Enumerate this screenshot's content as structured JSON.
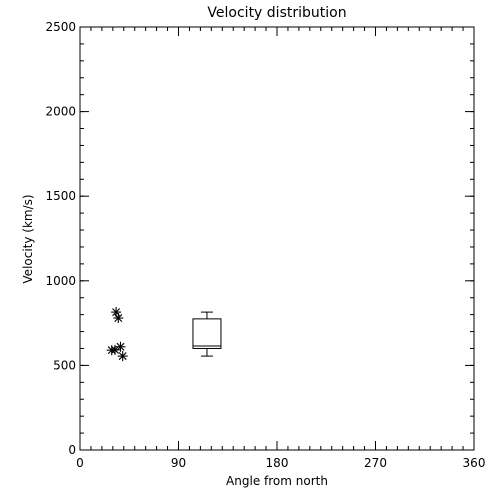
{
  "chart_data": {
    "type": "scatter",
    "title": "Velocity distribution",
    "xlabel": "Angle from north",
    "ylabel": "Velocity (km/s)",
    "xlim": [
      0,
      360
    ],
    "ylim": [
      0,
      2500
    ],
    "x_ticks": [
      0,
      90,
      180,
      270,
      360
    ],
    "y_ticks": [
      0,
      500,
      1000,
      1500,
      2000,
      2500
    ],
    "x_minor_step": 10,
    "y_minor_step": 100,
    "grid": false,
    "points": [
      {
        "x": 33,
        "y": 815
      },
      {
        "x": 35,
        "y": 780
      },
      {
        "x": 29,
        "y": 590
      },
      {
        "x": 32,
        "y": 592
      },
      {
        "x": 37,
        "y": 610
      },
      {
        "x": 39,
        "y": 555
      }
    ],
    "point_marker": "asterisk",
    "box": {
      "x": 116,
      "whisker_low": 555,
      "q1": 600,
      "median": 615,
      "q3": 775,
      "whisker_high": 815
    },
    "colors": {
      "foreground": "#000000",
      "background": "#ffffff"
    }
  }
}
